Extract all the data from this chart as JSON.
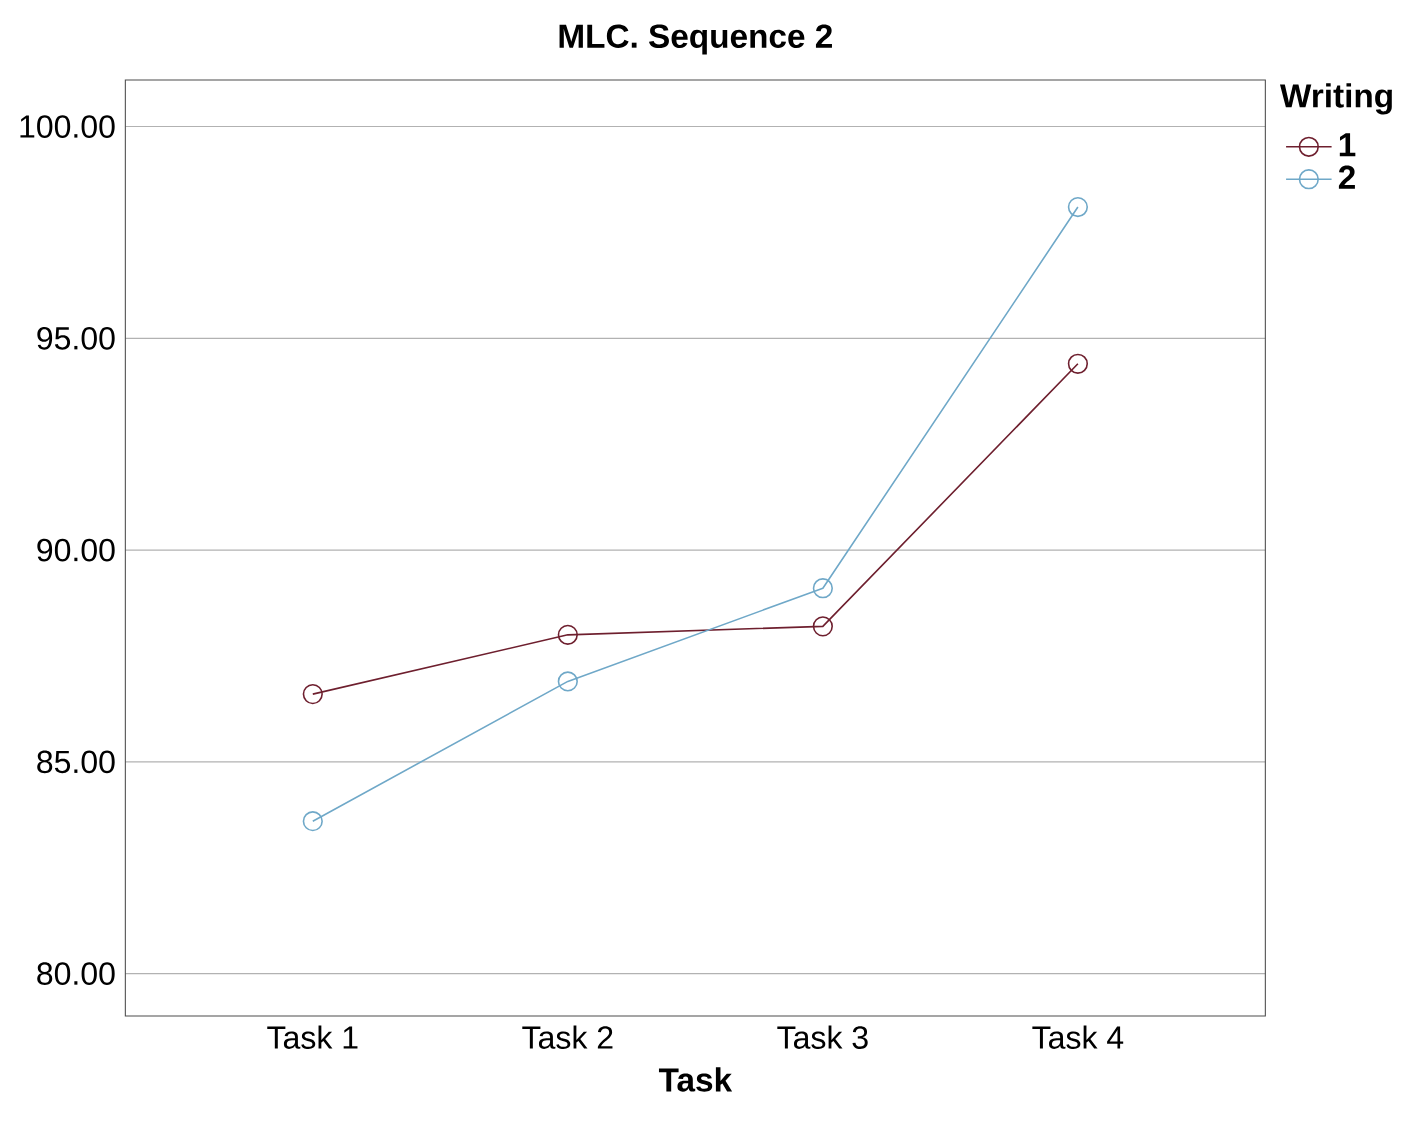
{
  "chart_data": {
    "type": "line",
    "title": "MLC. Sequence 2",
    "xlabel": "Task",
    "legend_title": "Writing",
    "categories": [
      "Task 1",
      "Task 2",
      "Task 3",
      "Task 4"
    ],
    "series": [
      {
        "name": "1",
        "color": "#6e1f2e",
        "values": [
          86.6,
          88.0,
          88.2,
          94.4
        ]
      },
      {
        "name": "2",
        "color": "#6fa8c8",
        "values": [
          83.6,
          86.9,
          89.1,
          98.1
        ]
      }
    ],
    "ylim": [
      79,
      101.1
    ],
    "yticks": [
      {
        "value": 80,
        "label": "80.00"
      },
      {
        "value": 85,
        "label": "85.00"
      },
      {
        "value": 90,
        "label": "90.00"
      },
      {
        "value": 95,
        "label": "95.00"
      },
      {
        "value": 100,
        "label": "100.00"
      }
    ],
    "grid": "y",
    "legend": "top right",
    "marker": "circle",
    "line_style": "solid"
  }
}
